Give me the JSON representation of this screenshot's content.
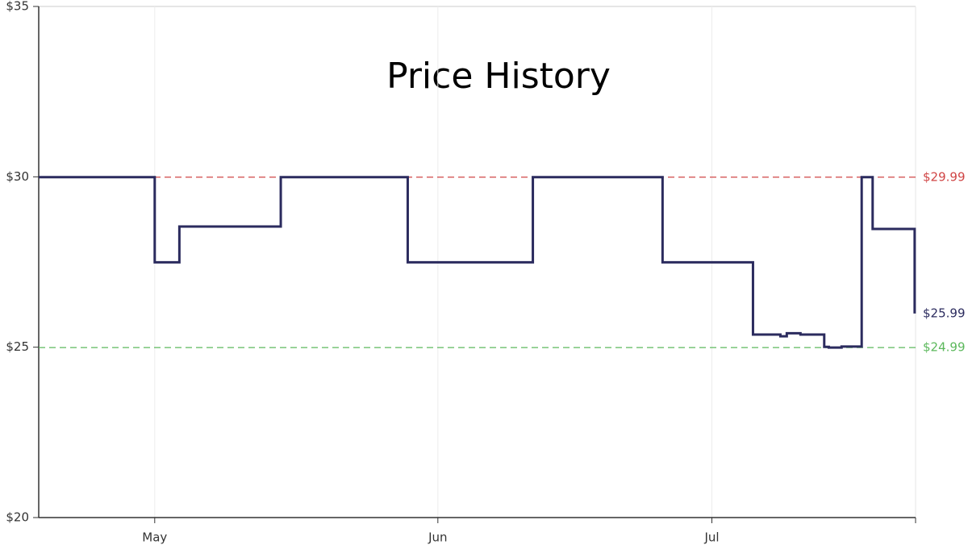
{
  "chart_data": {
    "type": "step-line",
    "title": "Price History",
    "x": [
      0.3,
      13.0,
      15.7,
      26.8,
      40.7,
      54.4,
      68.6,
      78.5,
      81.5,
      82.2,
      83.7,
      86.3,
      86.8,
      88.2,
      90.4,
      91.6,
      96.2
    ],
    "series": [
      {
        "color": "#2b2b5e",
        "values": [
          29.99,
          27.49,
          28.54,
          29.99,
          27.49,
          29.99,
          27.49,
          25.37,
          25.32,
          25.41,
          25.37,
          25.01,
          24.99,
          25.02,
          29.99,
          28.47,
          25.99
        ]
      }
    ],
    "xlim": [
      0.3,
      96.3
    ],
    "xticks": [
      {
        "value": 13,
        "label": "May"
      },
      {
        "value": 44,
        "label": "Jun"
      },
      {
        "value": 74,
        "label": "Jul"
      }
    ],
    "ylim": [
      20,
      35
    ],
    "yticks": [
      {
        "value": 20,
        "label": "$20"
      },
      {
        "value": 25,
        "label": "$25"
      },
      {
        "value": 30,
        "label": "$30"
      },
      {
        "value": 35,
        "label": "$35"
      }
    ],
    "grid": true,
    "reference_lines": [
      {
        "value": 29.99,
        "label": "$29.99",
        "color": "#d04545"
      },
      {
        "value": 24.99,
        "label": "$24.99",
        "color": "#5cb85c"
      }
    ],
    "last_label": {
      "value": 25.99,
      "label": "$25.99",
      "color": "#2b2b5e"
    }
  }
}
